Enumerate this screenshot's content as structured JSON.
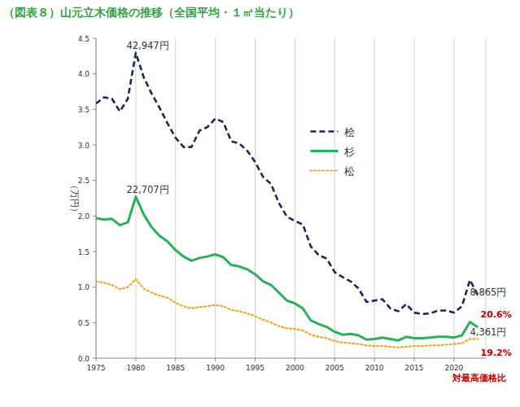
{
  "chart_data": {
    "type": "line",
    "title": "（図表８）山元立木価格の推移（全国平均・１㎥当たり）",
    "y_label": "（万円）",
    "x": [
      1975,
      1976,
      1977,
      1978,
      1979,
      1980,
      1981,
      1982,
      1983,
      1984,
      1985,
      1986,
      1987,
      1988,
      1989,
      1990,
      1991,
      1992,
      1993,
      1994,
      1995,
      1996,
      1997,
      1998,
      1999,
      2000,
      2001,
      2002,
      2003,
      2004,
      2005,
      2006,
      2007,
      2008,
      2009,
      2010,
      2011,
      2012,
      2013,
      2014,
      2015,
      2016,
      2017,
      2018,
      2019,
      2020,
      2021,
      2022,
      2023
    ],
    "series": [
      {
        "name": "桧",
        "color": "#1c2657",
        "line_style": "dashed",
        "values": [
          3.58,
          3.67,
          3.65,
          3.47,
          3.65,
          4.2947,
          3.95,
          3.72,
          3.52,
          3.3,
          3.1,
          2.97,
          2.97,
          3.2,
          3.25,
          3.37,
          3.32,
          3.05,
          3.02,
          2.92,
          2.76,
          2.55,
          2.45,
          2.18,
          1.99,
          1.93,
          1.88,
          1.57,
          1.45,
          1.4,
          1.21,
          1.14,
          1.08,
          0.98,
          0.79,
          0.81,
          0.83,
          0.7,
          0.66,
          0.76,
          0.64,
          0.62,
          0.63,
          0.67,
          0.67,
          0.64,
          0.73,
          1.1,
          0.8865
        ]
      },
      {
        "name": "杉",
        "color": "#2bb05a",
        "line_style": "solid",
        "values": [
          1.97,
          1.95,
          1.96,
          1.87,
          1.91,
          2.2707,
          2.02,
          1.84,
          1.72,
          1.64,
          1.52,
          1.43,
          1.37,
          1.41,
          1.43,
          1.46,
          1.42,
          1.31,
          1.29,
          1.25,
          1.18,
          1.08,
          1.03,
          0.92,
          0.81,
          0.77,
          0.7,
          0.53,
          0.48,
          0.44,
          0.37,
          0.33,
          0.34,
          0.32,
          0.26,
          0.27,
          0.29,
          0.27,
          0.25,
          0.3,
          0.28,
          0.28,
          0.29,
          0.3,
          0.3,
          0.29,
          0.32,
          0.51,
          0.4361
        ]
      },
      {
        "name": "松",
        "color": "#f0a830",
        "line_style": "dotted",
        "values": [
          1.08,
          1.06,
          1.03,
          0.97,
          1.0,
          1.11,
          0.98,
          0.92,
          0.88,
          0.85,
          0.78,
          0.73,
          0.7,
          0.72,
          0.73,
          0.75,
          0.73,
          0.68,
          0.66,
          0.63,
          0.59,
          0.54,
          0.5,
          0.45,
          0.42,
          0.41,
          0.39,
          0.33,
          0.3,
          0.28,
          0.24,
          0.22,
          0.21,
          0.2,
          0.18,
          0.17,
          0.17,
          0.16,
          0.15,
          0.16,
          0.17,
          0.17,
          0.18,
          0.18,
          0.19,
          0.2,
          0.21,
          0.27,
          0.27
        ]
      }
    ],
    "xlim": [
      1975,
      2024
    ],
    "xticks": [
      1975,
      1980,
      1985,
      1990,
      1995,
      2000,
      2005,
      2010,
      2015,
      2020
    ],
    "ylim": [
      0,
      4.5
    ],
    "yticks": [
      {
        "value": 0,
        "label": "0.0"
      },
      {
        "value": 0.5,
        "label": "0.5"
      },
      {
        "value": 1,
        "label": "1.0"
      },
      {
        "value": 1.5,
        "label": "1.5"
      },
      {
        "value": 2,
        "label": "2.0"
      },
      {
        "value": 2.5,
        "label": "2.5"
      },
      {
        "value": 3,
        "label": "3.0"
      },
      {
        "value": 3.5,
        "label": "3.5"
      },
      {
        "value": 4,
        "label": "4.0"
      },
      {
        "value": 4.5,
        "label": "4.5"
      }
    ],
    "grid": "x",
    "legend": "center right",
    "annotations": [
      {
        "text": "42,947円",
        "x": 1981.5,
        "y": 4.4,
        "color": "#333333"
      },
      {
        "text": "22,707円",
        "x": 1981.5,
        "y": 2.37,
        "color": "#333333"
      },
      {
        "text": "8,865円",
        "x": 2024.3,
        "y": 0.93,
        "color": "#333333"
      },
      {
        "text": "20.6%",
        "x": 2025.3,
        "y": 0.62,
        "color": "#c00000"
      },
      {
        "text": "4,361円",
        "x": 2024.3,
        "y": 0.37,
        "color": "#333333"
      },
      {
        "text": "19.2%",
        "x": 2025.3,
        "y": 0.08,
        "color": "#c00000"
      },
      {
        "text": "対最高価格比",
        "x": 2023.2,
        "y": -0.27,
        "color": "#c00000"
      }
    ]
  }
}
